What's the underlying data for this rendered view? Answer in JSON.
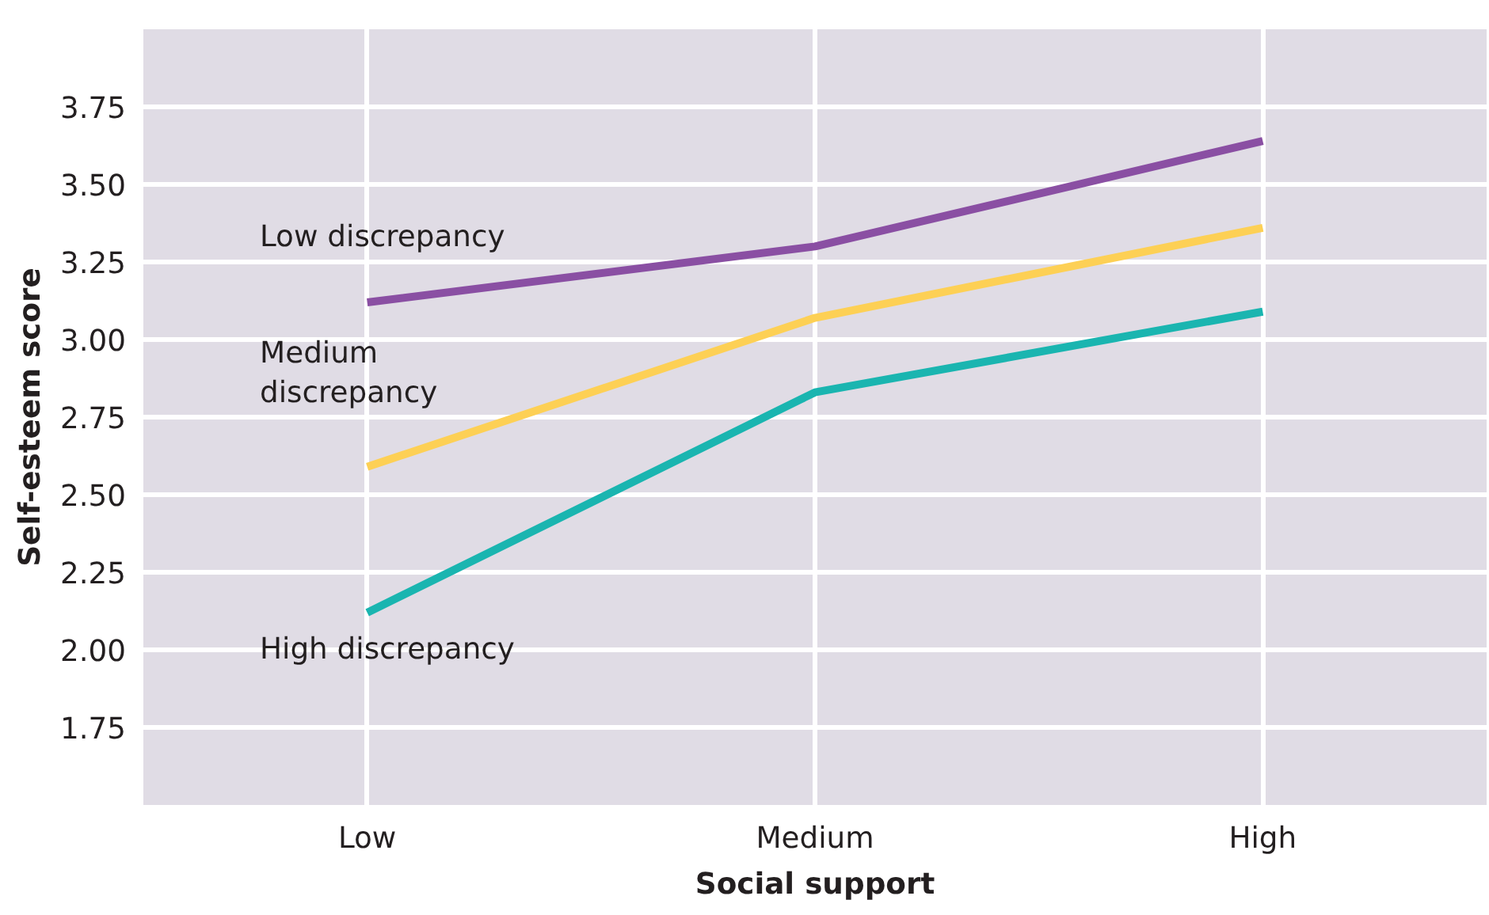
{
  "chart_data": {
    "type": "line",
    "xlabel": "Social support",
    "ylabel": "Self-esteem score",
    "categories": [
      "Low",
      "Medium",
      "High"
    ],
    "series": [
      {
        "name": "Low discrepancy",
        "color": "#8a4fa3",
        "values": [
          3.12,
          3.3,
          3.64
        ]
      },
      {
        "name": "Medium discrepancy",
        "color": "#fdd055",
        "values": [
          2.59,
          3.07,
          3.36
        ]
      },
      {
        "name": "High discrepancy",
        "color": "#1ab5b0",
        "values": [
          2.12,
          2.83,
          3.09
        ]
      }
    ],
    "ylim": [
      1.5,
      4.0
    ],
    "yticks": [
      1.75,
      {
        "value": 2,
        "label": "2.00"
      },
      2.25,
      {
        "value": 2.5,
        "label": "2.50"
      },
      2.75,
      {
        "value": 3,
        "label": "3.00"
      },
      3.25,
      {
        "value": 3.5,
        "label": "3.50"
      },
      3.75
    ],
    "grid": true,
    "marker": "none",
    "line_style": "solid"
  }
}
